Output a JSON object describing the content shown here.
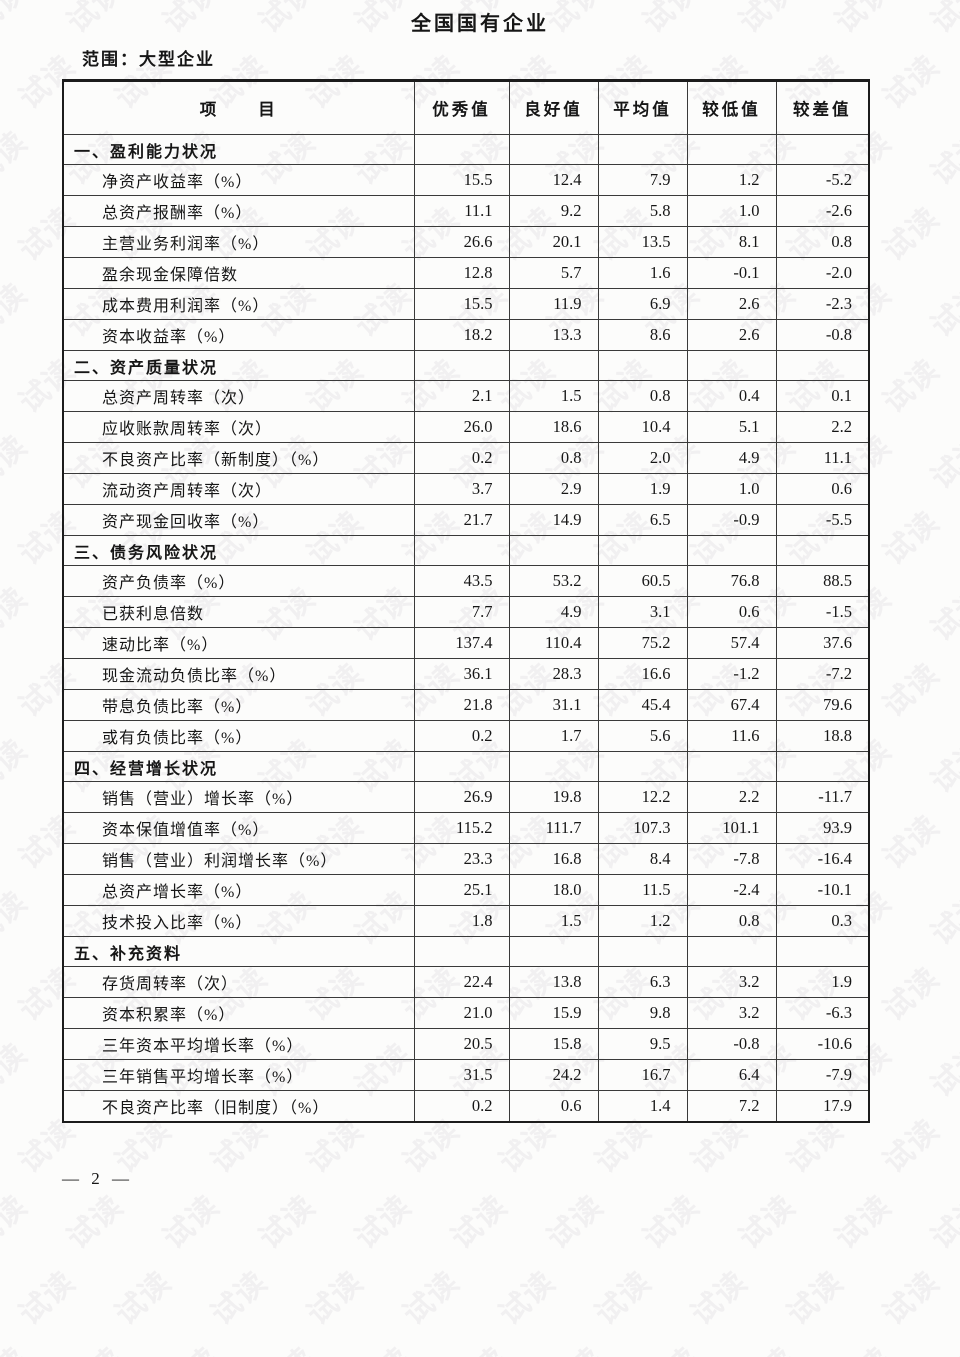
{
  "page": {
    "title": "全国国有企业",
    "scope_label": "范围：大型企业",
    "page_number": "— 2 —",
    "watermark_text": "试读"
  },
  "table": {
    "header": {
      "item": "项　　目",
      "columns": [
        "优秀值",
        "良好值",
        "平均值",
        "较低值",
        "较差值"
      ]
    },
    "sections": [
      {
        "title": "一、盈利能力状况",
        "rows": [
          {
            "label": "净资产收益率（%）",
            "values": [
              "15.5",
              "12.4",
              "7.9",
              "1.2",
              "-5.2"
            ]
          },
          {
            "label": "总资产报酬率（%）",
            "values": [
              "11.1",
              "9.2",
              "5.8",
              "1.0",
              "-2.6"
            ]
          },
          {
            "label": "主营业务利润率（%）",
            "values": [
              "26.6",
              "20.1",
              "13.5",
              "8.1",
              "0.8"
            ]
          },
          {
            "label": "盈余现金保障倍数",
            "values": [
              "12.8",
              "5.7",
              "1.6",
              "-0.1",
              "-2.0"
            ]
          },
          {
            "label": "成本费用利润率（%）",
            "values": [
              "15.5",
              "11.9",
              "6.9",
              "2.6",
              "-2.3"
            ]
          },
          {
            "label": "资本收益率（%）",
            "values": [
              "18.2",
              "13.3",
              "8.6",
              "2.6",
              "-0.8"
            ]
          }
        ]
      },
      {
        "title": "二、资产质量状况",
        "rows": [
          {
            "label": "总资产周转率（次）",
            "values": [
              "2.1",
              "1.5",
              "0.8",
              "0.4",
              "0.1"
            ]
          },
          {
            "label": "应收账款周转率（次）",
            "values": [
              "26.0",
              "18.6",
              "10.4",
              "5.1",
              "2.2"
            ]
          },
          {
            "label": "不良资产比率（新制度）（%）",
            "values": [
              "0.2",
              "0.8",
              "2.0",
              "4.9",
              "11.1"
            ]
          },
          {
            "label": "流动资产周转率（次）",
            "values": [
              "3.7",
              "2.9",
              "1.9",
              "1.0",
              "0.6"
            ]
          },
          {
            "label": "资产现金回收率（%）",
            "values": [
              "21.7",
              "14.9",
              "6.5",
              "-0.9",
              "-5.5"
            ]
          }
        ]
      },
      {
        "title": "三、债务风险状况",
        "rows": [
          {
            "label": "资产负债率（%）",
            "values": [
              "43.5",
              "53.2",
              "60.5",
              "76.8",
              "88.5"
            ]
          },
          {
            "label": "已获利息倍数",
            "values": [
              "7.7",
              "4.9",
              "3.1",
              "0.6",
              "-1.5"
            ]
          },
          {
            "label": "速动比率（%）",
            "values": [
              "137.4",
              "110.4",
              "75.2",
              "57.4",
              "37.6"
            ]
          },
          {
            "label": "现金流动负债比率（%）",
            "values": [
              "36.1",
              "28.3",
              "16.6",
              "-1.2",
              "-7.2"
            ]
          },
          {
            "label": "带息负债比率（%）",
            "values": [
              "21.8",
              "31.1",
              "45.4",
              "67.4",
              "79.6"
            ]
          },
          {
            "label": "或有负债比率（%）",
            "values": [
              "0.2",
              "1.7",
              "5.6",
              "11.6",
              "18.8"
            ]
          }
        ]
      },
      {
        "title": "四、经营增长状况",
        "rows": [
          {
            "label": "销售（营业）增长率（%）",
            "values": [
              "26.9",
              "19.8",
              "12.2",
              "2.2",
              "-11.7"
            ]
          },
          {
            "label": "资本保值增值率（%）",
            "values": [
              "115.2",
              "111.7",
              "107.3",
              "101.1",
              "93.9"
            ]
          },
          {
            "label": "销售（营业）利润增长率（%）",
            "values": [
              "23.3",
              "16.8",
              "8.4",
              "-7.8",
              "-16.4"
            ]
          },
          {
            "label": "总资产增长率（%）",
            "values": [
              "25.1",
              "18.0",
              "11.5",
              "-2.4",
              "-10.1"
            ]
          },
          {
            "label": "技术投入比率（%）",
            "values": [
              "1.8",
              "1.5",
              "1.2",
              "0.8",
              "0.3"
            ]
          }
        ]
      },
      {
        "title": "五、补充资料",
        "rows": [
          {
            "label": "存货周转率（次）",
            "values": [
              "22.4",
              "13.8",
              "6.3",
              "3.2",
              "1.9"
            ]
          },
          {
            "label": "资本积累率（%）",
            "values": [
              "21.0",
              "15.9",
              "9.8",
              "3.2",
              "-6.3"
            ]
          },
          {
            "label": "三年资本平均增长率（%）",
            "values": [
              "20.5",
              "15.8",
              "9.5",
              "-0.8",
              "-10.6"
            ]
          },
          {
            "label": "三年销售平均增长率（%）",
            "values": [
              "31.5",
              "24.2",
              "16.7",
              "6.4",
              "-7.9"
            ]
          },
          {
            "label": "不良资产比率（旧制度）（%）",
            "values": [
              "0.2",
              "0.6",
              "1.4",
              "7.2",
              "17.9"
            ]
          }
        ]
      }
    ]
  }
}
